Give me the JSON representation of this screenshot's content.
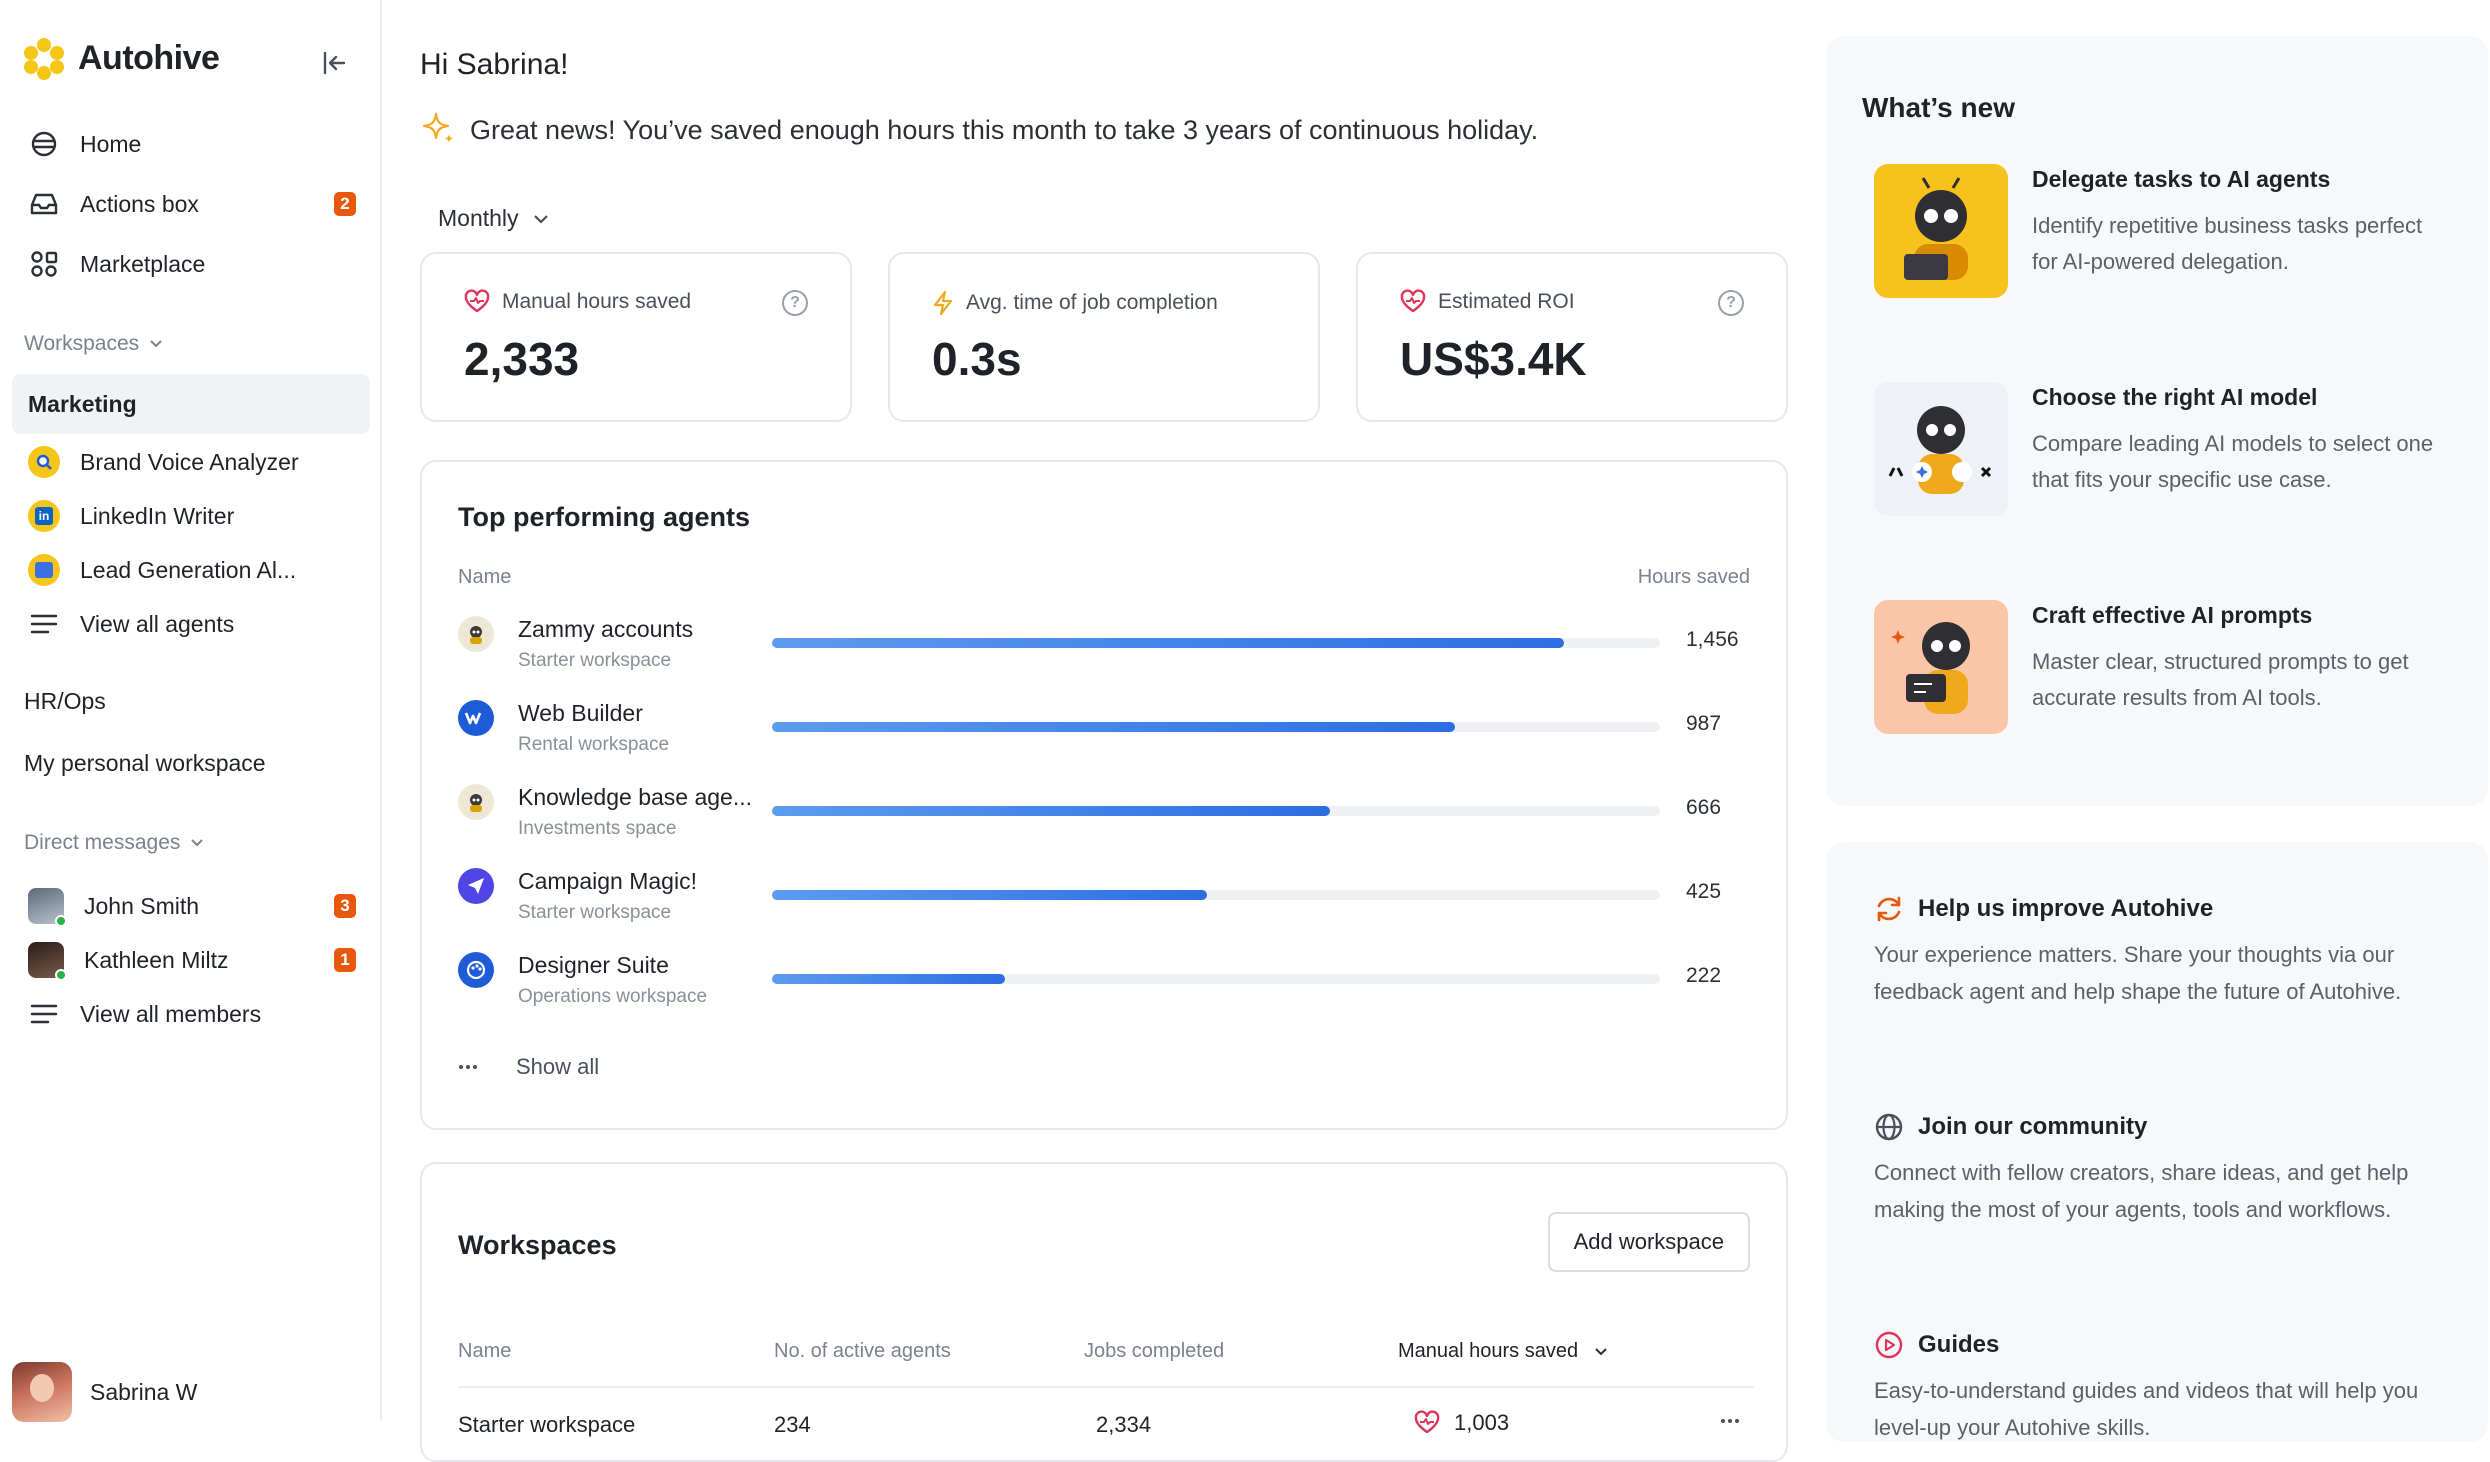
{
  "brand": {
    "name": "Autohive"
  },
  "sidebar": {
    "nav": [
      {
        "label": "Home",
        "icon": "home-icon"
      },
      {
        "label": "Actions box",
        "icon": "inbox-icon",
        "badge": "2"
      },
      {
        "label": "Marketplace",
        "icon": "grid-icon"
      }
    ],
    "workspaces_label": "Workspaces",
    "active_workspace": "Marketing",
    "agents": [
      {
        "label": "Brand Voice Analyzer",
        "color": "#f5c518"
      },
      {
        "label": "LinkedIn Writer",
        "color": "#f5c518"
      },
      {
        "label": "Lead Generation Al...",
        "color": "#f5c518"
      }
    ],
    "view_all_agents": "View all agents",
    "other_workspaces": [
      "HR/Ops",
      "My personal workspace"
    ],
    "dm_label": "Direct messages",
    "members": [
      {
        "label": "John Smith",
        "badge": "3"
      },
      {
        "label": "Kathleen Miltz",
        "badge": "1"
      }
    ],
    "view_all_members": "View all members",
    "user": {
      "name": "Sabrina W"
    }
  },
  "main": {
    "greeting": "Hi Sabrina!",
    "news": "Great news! You’ve saved enough hours this month to take 3 years of continuous holiday.",
    "period": "Monthly",
    "stats": [
      {
        "label": "Manual hours saved",
        "value": "2,333"
      },
      {
        "label": "Avg. time of job completion",
        "value": "0.3s"
      },
      {
        "label": "Estimated ROI",
        "value": "US$3.4K"
      }
    ],
    "top_agents": {
      "title": "Top performing agents",
      "col_name": "Name",
      "col_hours": "Hours saved",
      "rows": [
        {
          "name": "Zammy accounts",
          "workspace": "Starter workspace",
          "hours": "1,456",
          "fraction": 0.892
        },
        {
          "name": "Web Builder",
          "workspace": "Rental workspace",
          "hours": "987",
          "fraction": 0.769
        },
        {
          "name": "Knowledge base age...",
          "workspace": "Investments space",
          "hours": "666",
          "fraction": 0.628
        },
        {
          "name": "Campaign Magic!",
          "workspace": "Starter workspace",
          "hours": "425",
          "fraction": 0.49
        },
        {
          "name": "Designer Suite",
          "workspace": "Operations workspace",
          "hours": "222",
          "fraction": 0.262
        }
      ],
      "show_all": "Show all"
    },
    "workspaces": {
      "title": "Workspaces",
      "add_button": "Add workspace",
      "columns": [
        "Name",
        "No. of active agents",
        "Jobs completed",
        "Manual hours saved"
      ],
      "rows": [
        {
          "name": "Starter workspace",
          "agents": "234",
          "jobs": "2,334",
          "hours": "1,003"
        }
      ]
    }
  },
  "whats_new": {
    "title": "What’s new",
    "items": [
      {
        "title": "Delegate tasks to AI agents",
        "desc": "Identify repetitive business tasks perfect for AI-powered delegation."
      },
      {
        "title": "Choose the right AI model",
        "desc": "Compare leading AI models to select one that fits your specific use case."
      },
      {
        "title": "Craft effective AI prompts",
        "desc": "Master clear, structured prompts to get accurate results from AI tools."
      }
    ]
  },
  "help": [
    {
      "title": "Help us improve Autohive",
      "desc": "Your experience matters. Share your thoughts via our feedback agent and help shape the future of Autohive."
    },
    {
      "title": "Join our community",
      "desc": "Connect with fellow creators, share ideas, and get help making the most of your agents, tools and workflows."
    },
    {
      "title": "Guides",
      "desc": "Easy-to-understand guides and videos that will help you level-up your Autohive skills."
    }
  ]
}
